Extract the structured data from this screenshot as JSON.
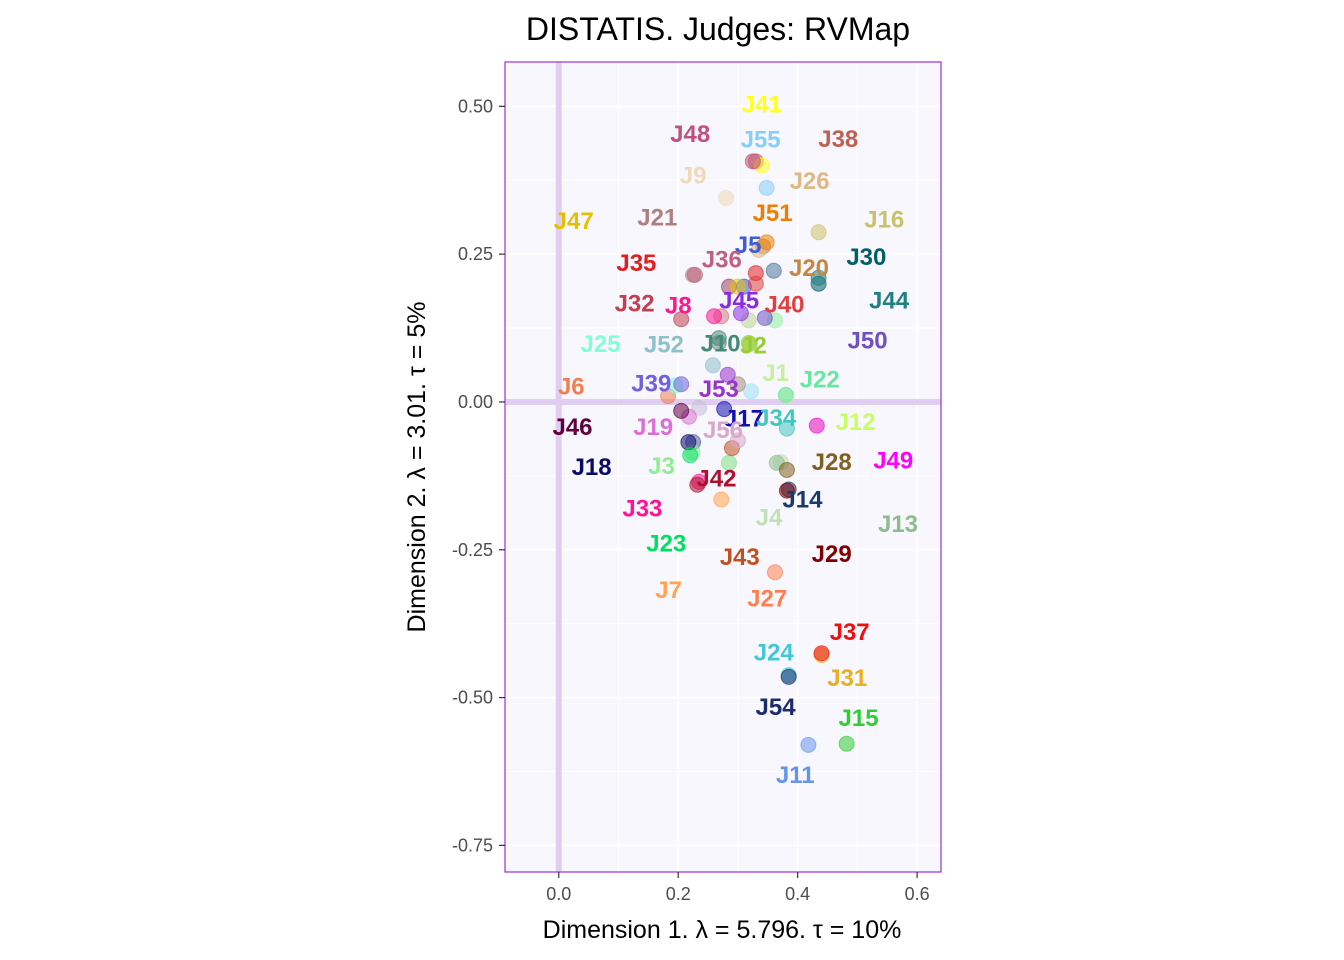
{
  "chart_data": {
    "type": "scatter",
    "title": "DISTATIS. Judges: RVMap",
    "xlabel": "Dimension 1.   λ = 5.796.  τ = 10%",
    "ylabel": "Dimension 2.   λ = 3.01.  τ = 5%",
    "xlim": [
      -0.09,
      0.64
    ],
    "ylim": [
      -0.795,
      0.575
    ],
    "x_ticks": [
      0.0,
      0.2,
      0.4,
      0.6
    ],
    "x_tick_labels": [
      "0.0",
      "0.2",
      "0.4",
      "0.6"
    ],
    "y_ticks": [
      0.5,
      0.25,
      0.0,
      -0.25,
      -0.5,
      -0.75
    ],
    "y_tick_labels": [
      "0.50",
      "0.25",
      "0.00",
      "-0.25",
      "-0.50",
      "-0.75"
    ],
    "grid": true,
    "origin_lines": true,
    "colors": {
      "panel_background": "#f8f7fd",
      "panel_border": "#9b30d9",
      "grid": "#ffffff",
      "origin_line": "#e0cdf2"
    },
    "points": [
      {
        "label": "J1",
        "x": 0.381,
        "y": 0.011,
        "color": "#c6f0a0",
        "label_dx": -0.018,
        "label_dy": 0.037
      },
      {
        "label": "J2",
        "x": 0.318,
        "y": 0.1,
        "color": "#9acd32",
        "label_dx": 0.008,
        "label_dy": -0.005
      },
      {
        "label": "J3",
        "x": 0.224,
        "y": -0.085,
        "color": "#90ee90",
        "label_dx": -0.052,
        "label_dy": -0.024
      },
      {
        "label": "J4",
        "x": 0.372,
        "y": -0.102,
        "color": "#c0e0b8",
        "label_dx": -0.02,
        "label_dy": -0.094
      },
      {
        "label": "J5",
        "x": 0.31,
        "y": 0.195,
        "color": "#3b5bdb",
        "label_dx": 0.007,
        "label_dy": 0.07
      },
      {
        "label": "J6",
        "x": 0.183,
        "y": 0.01,
        "color": "#f08050",
        "label_dx": -0.162,
        "label_dy": 0.015
      },
      {
        "label": "J7",
        "x": 0.272,
        "y": -0.165,
        "color": "#ffa54f",
        "label_dx": -0.088,
        "label_dy": -0.154
      },
      {
        "label": "J8",
        "x": 0.26,
        "y": 0.145,
        "color": "#ff1493",
        "label_dx": -0.06,
        "label_dy": 0.017
      },
      {
        "label": "J9",
        "x": 0.28,
        "y": 0.345,
        "color": "#f0d8b8",
        "label_dx": -0.055,
        "label_dy": 0.037
      },
      {
        "label": "J10",
        "x": 0.268,
        "y": 0.108,
        "color": "#458b74",
        "label_dx": 0.003,
        "label_dy": -0.01
      },
      {
        "label": "J11",
        "x": 0.418,
        "y": -0.58,
        "color": "#6495ed",
        "label_dx": -0.022,
        "label_dy": -0.052
      },
      {
        "label": "J12",
        "x": 0.432,
        "y": -0.04,
        "color": "#c8ff60",
        "label_dx": 0.065,
        "label_dy": 0.005
      },
      {
        "label": "J13",
        "x": 0.365,
        "y": -0.103,
        "color": "#8fbc8f",
        "label_dx": 0.203,
        "label_dy": -0.104
      },
      {
        "label": "J14",
        "x": 0.385,
        "y": -0.148,
        "color": "#1a3a6a",
        "label_dx": 0.023,
        "label_dy": -0.018
      },
      {
        "label": "J15",
        "x": 0.482,
        "y": -0.578,
        "color": "#32cd32",
        "label_dx": 0.02,
        "label_dy": 0.043
      },
      {
        "label": "J16",
        "x": 0.435,
        "y": 0.287,
        "color": "#c8c26a",
        "label_dx": 0.11,
        "label_dy": 0.021
      },
      {
        "label": "J17",
        "x": 0.277,
        "y": -0.012,
        "color": "#1010b0",
        "label_dx": 0.033,
        "label_dy": -0.017
      },
      {
        "label": "J18",
        "x": 0.217,
        "y": -0.068,
        "color": "#0a0a6a",
        "label_dx": -0.162,
        "label_dy": -0.043
      },
      {
        "label": "J19",
        "x": 0.218,
        "y": -0.025,
        "color": "#da70d6",
        "label_dx": -0.06,
        "label_dy": -0.018
      },
      {
        "label": "J20",
        "x": 0.342,
        "y": 0.263,
        "color": "#c68642",
        "label_dx": 0.077,
        "label_dy": -0.037
      },
      {
        "label": "J21",
        "x": 0.225,
        "y": 0.215,
        "color": "#b08080",
        "label_dx": -0.06,
        "label_dy": 0.096
      },
      {
        "label": "J22",
        "x": 0.38,
        "y": 0.012,
        "color": "#66e8a0",
        "label_dx": 0.057,
        "label_dy": 0.025
      },
      {
        "label": "J23",
        "x": 0.22,
        "y": -0.09,
        "color": "#00e060",
        "label_dx": -0.04,
        "label_dy": -0.15
      },
      {
        "label": "J24",
        "x": 0.385,
        "y": -0.462,
        "color": "#40c8d8",
        "label_dx": -0.025,
        "label_dy": 0.037
      },
      {
        "label": "J25",
        "x": 0.195,
        "y": 0.028,
        "color": "#7fffd4",
        "label_dx": -0.125,
        "label_dy": 0.069
      },
      {
        "label": "J26",
        "x": 0.335,
        "y": 0.257,
        "color": "#deb887",
        "label_dx": 0.085,
        "label_dy": 0.116
      },
      {
        "label": "J27",
        "x": 0.362,
        "y": -0.288,
        "color": "#ff7f50",
        "label_dx": -0.013,
        "label_dy": -0.045
      },
      {
        "label": "J28",
        "x": 0.382,
        "y": -0.115,
        "color": "#806020",
        "label_dx": 0.075,
        "label_dy": 0.013
      },
      {
        "label": "J29",
        "x": 0.382,
        "y": -0.15,
        "color": "#800000",
        "label_dx": 0.075,
        "label_dy": -0.108
      },
      {
        "label": "J30",
        "x": 0.435,
        "y": 0.2,
        "color": "#005f6b",
        "label_dx": 0.08,
        "label_dy": 0.044
      },
      {
        "label": "J31",
        "x": 0.44,
        "y": -0.428,
        "color": "#e6b020",
        "label_dx": 0.043,
        "label_dy": -0.04
      },
      {
        "label": "J32",
        "x": 0.205,
        "y": 0.14,
        "color": "#c04050",
        "label_dx": -0.078,
        "label_dy": 0.026
      },
      {
        "label": "J33",
        "x": 0.235,
        "y": -0.135,
        "color": "#ff1493",
        "label_dx": -0.095,
        "label_dy": -0.046
      },
      {
        "label": "J34",
        "x": 0.382,
        "y": -0.045,
        "color": "#40c8c0",
        "label_dx": -0.018,
        "label_dy": 0.017
      },
      {
        "label": "J35",
        "x": 0.33,
        "y": 0.218,
        "color": "#e02020",
        "label_dx": -0.2,
        "label_dy": 0.016
      },
      {
        "label": "J36",
        "x": 0.228,
        "y": 0.215,
        "color": "#c06080",
        "label_dx": 0.045,
        "label_dy": 0.025
      },
      {
        "label": "J37",
        "x": 0.44,
        "y": -0.425,
        "color": "#ee1010",
        "label_dx": 0.047,
        "label_dy": 0.035
      },
      {
        "label": "J38",
        "x": 0.33,
        "y": 0.407,
        "color": "#c06050",
        "label_dx": 0.138,
        "label_dy": 0.037
      },
      {
        "label": "J39",
        "x": 0.205,
        "y": 0.03,
        "color": "#7060e0",
        "label_dx": -0.05,
        "label_dy": 0.0
      },
      {
        "label": "J40",
        "x": 0.33,
        "y": 0.2,
        "color": "#e04040",
        "label_dx": 0.048,
        "label_dy": -0.036
      },
      {
        "label": "J41",
        "x": 0.34,
        "y": 0.4,
        "color": "#ffff20",
        "label_dx": 0.0,
        "label_dy": 0.102
      },
      {
        "label": "J42",
        "x": 0.232,
        "y": -0.14,
        "color": "#b01030",
        "label_dx": 0.032,
        "label_dy": 0.01
      },
      {
        "label": "J43",
        "x": 0.29,
        "y": -0.078,
        "color": "#c05020",
        "label_dx": 0.013,
        "label_dy": -0.185
      },
      {
        "label": "J44",
        "x": 0.435,
        "y": 0.21,
        "color": "#208080",
        "label_dx": 0.118,
        "label_dy": -0.039
      },
      {
        "label": "J45",
        "x": 0.305,
        "y": 0.15,
        "color": "#8a2be2",
        "label_dx": -0.003,
        "label_dy": 0.021
      },
      {
        "label": "J46",
        "x": 0.205,
        "y": -0.015,
        "color": "#600040",
        "label_dx": -0.182,
        "label_dy": -0.028
      },
      {
        "label": "J47",
        "x": 0.3,
        "y": 0.195,
        "color": "#e6c000",
        "label_dx": -0.275,
        "label_dy": 0.11
      },
      {
        "label": "J48",
        "x": 0.325,
        "y": 0.407,
        "color": "#c05080",
        "label_dx": -0.105,
        "label_dy": 0.045
      },
      {
        "label": "J49",
        "x": 0.432,
        "y": -0.04,
        "color": "#ff00ff",
        "label_dx": 0.128,
        "label_dy": -0.06
      },
      {
        "label": "J50",
        "x": 0.345,
        "y": 0.142,
        "color": "#7050c0",
        "label_dx": 0.172,
        "label_dy": -0.039
      },
      {
        "label": "J51",
        "x": 0.348,
        "y": 0.27,
        "color": "#ef7f00",
        "label_dx": 0.01,
        "label_dy": 0.049
      },
      {
        "label": "J52",
        "x": 0.258,
        "y": 0.062,
        "color": "#90c0c8",
        "label_dx": -0.082,
        "label_dy": 0.034
      },
      {
        "label": "J53",
        "x": 0.283,
        "y": 0.046,
        "color": "#9932cc",
        "label_dx": -0.015,
        "label_dy": -0.025
      },
      {
        "label": "J54",
        "x": 0.385,
        "y": -0.465,
        "color": "#1a2d6a",
        "label_dx": -0.022,
        "label_dy": -0.052
      },
      {
        "label": "J55",
        "x": 0.348,
        "y": 0.362,
        "color": "#87cefa",
        "label_dx": -0.01,
        "label_dy": 0.081
      },
      {
        "label": "J56",
        "x": 0.3,
        "y": -0.065,
        "color": "#d8a8c8",
        "label_dx": -0.025,
        "label_dy": 0.017
      }
    ],
    "extra_points": [
      {
        "x": 0.235,
        "y": -0.01,
        "color": "#c7c0d8"
      },
      {
        "x": 0.272,
        "y": 0.145,
        "color": "#c88080"
      },
      {
        "x": 0.285,
        "y": 0.195,
        "color": "#a04060"
      },
      {
        "x": 0.318,
        "y": 0.138,
        "color": "#b8d890"
      },
      {
        "x": 0.362,
        "y": 0.138,
        "color": "#90f0a0"
      },
      {
        "x": 0.36,
        "y": 0.222,
        "color": "#4a7a9a"
      },
      {
        "x": 0.322,
        "y": 0.018,
        "color": "#a0e0f0"
      },
      {
        "x": 0.3,
        "y": 0.03,
        "color": "#a09080"
      },
      {
        "x": 0.225,
        "y": -0.068,
        "color": "#5060a0"
      },
      {
        "x": 0.285,
        "y": -0.103,
        "color": "#80e080"
      },
      {
        "x": 0.268,
        "y": 0.1,
        "color": "#6a8a8a"
      },
      {
        "x": 0.32,
        "y": 0.098,
        "color": "#8fd040"
      }
    ]
  }
}
